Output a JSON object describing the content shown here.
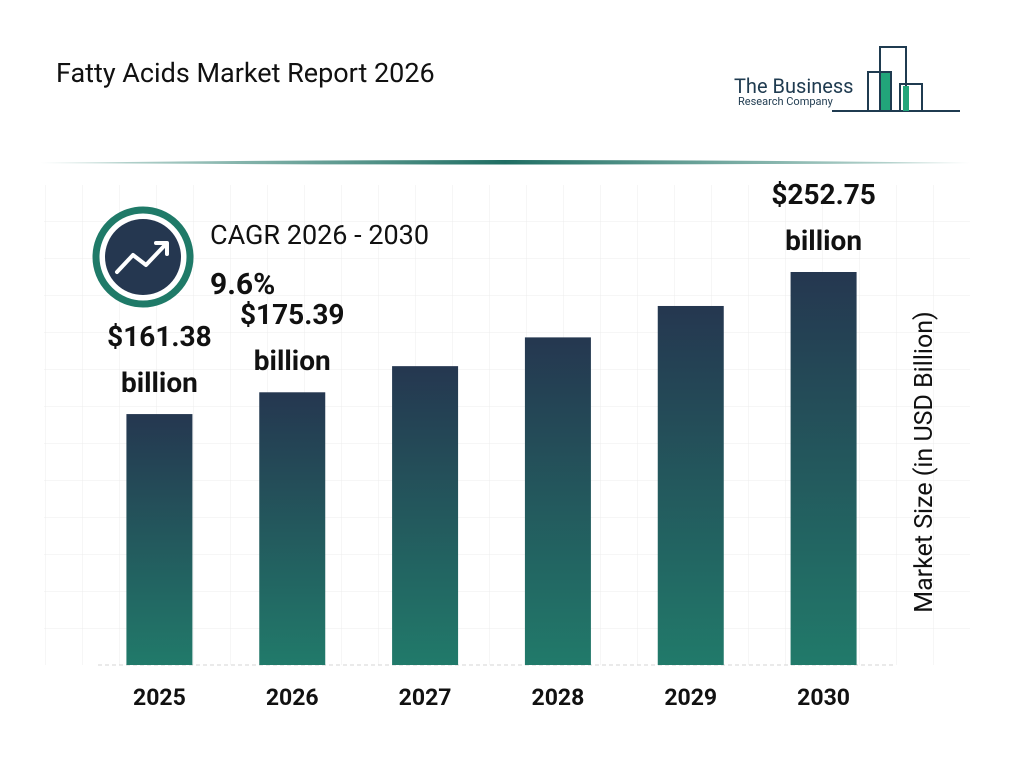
{
  "header": {
    "title": "Fatty Acids Market Report 2026",
    "logo_line1": "The Business",
    "logo_line2": "Research Company"
  },
  "chart_data": {
    "type": "bar",
    "categories": [
      "2025",
      "2026",
      "2027",
      "2028",
      "2029",
      "2030"
    ],
    "values": [
      161.38,
      175.39,
      192.2,
      210.7,
      230.9,
      252.75
    ],
    "value_labels": [
      "$161.38 billion",
      "$175.39 billion",
      null,
      null,
      null,
      "$252.75 billion"
    ],
    "color": "#217a6a",
    "y_label": "Market Size (in USD Billion)",
    "annotations": [
      "CAGR 2026 - 2030",
      "9.6%"
    ]
  }
}
